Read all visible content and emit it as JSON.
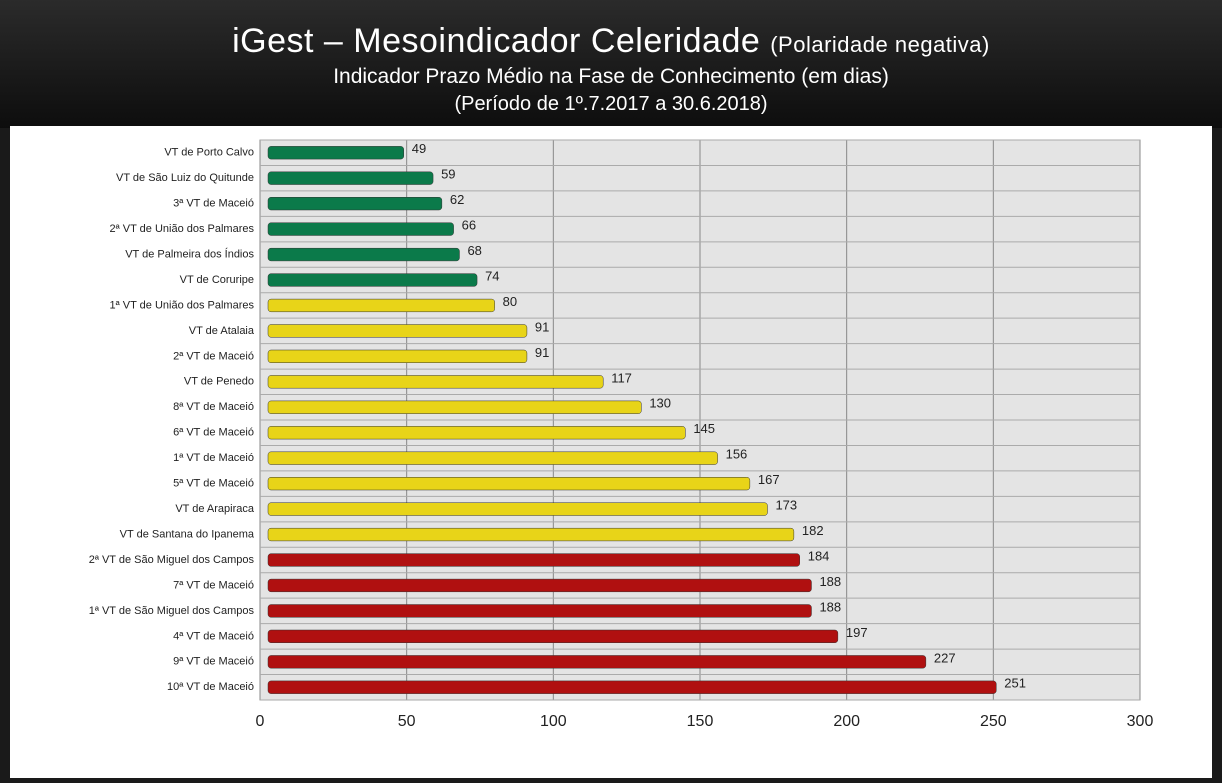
{
  "chart_data": {
    "type": "bar",
    "orientation": "horizontal",
    "title": "iGest – Mesoindicador Celeridade",
    "title_note": "(Polaridade negativa)",
    "subtitle": "Indicador Prazo Médio na Fase de Conhecimento (em dias)",
    "period": "(Período de 1º.7.2017  a  30.6.2018)",
    "categories": [
      "VT de Porto Calvo",
      "VT de São Luiz do Quitunde",
      "3ª VT de Maceió",
      "2ª VT de União dos Palmares",
      "VT de Palmeira dos Índios",
      "VT de Coruripe",
      "1ª VT de União dos Palmares",
      "VT de Atalaia",
      "2ª VT de Maceió",
      "VT de Penedo",
      "8ª VT de Maceió",
      "6ª VT de Maceió",
      "1ª VT de Maceió",
      "5ª VT de Maceió",
      "VT de Arapiraca",
      "VT de Santana do Ipanema",
      "2ª VT de São Miguel dos Campos",
      "7ª VT de Maceió",
      "1ª VT de São Miguel dos Campos",
      "4ª VT de Maceió",
      "9ª VT de Maceió",
      "10ª VT de Maceió"
    ],
    "values": [
      49,
      59,
      62,
      66,
      68,
      74,
      80,
      91,
      91,
      117,
      130,
      145,
      156,
      167,
      173,
      182,
      184,
      188,
      188,
      197,
      227,
      251
    ],
    "colors": [
      "#0b7a4a",
      "#0b7a4a",
      "#0b7a4a",
      "#0b7a4a",
      "#0b7a4a",
      "#0b7a4a",
      "#e8d418",
      "#e8d418",
      "#e8d418",
      "#e8d418",
      "#e8d418",
      "#e8d418",
      "#e8d418",
      "#e8d418",
      "#e8d418",
      "#e8d418",
      "#b01010",
      "#b01010",
      "#b01010",
      "#b01010",
      "#b01010",
      "#b01010"
    ],
    "xlim": [
      0,
      300
    ],
    "xticks": [
      0,
      50,
      100,
      150,
      200,
      250,
      300
    ],
    "grid": true
  }
}
